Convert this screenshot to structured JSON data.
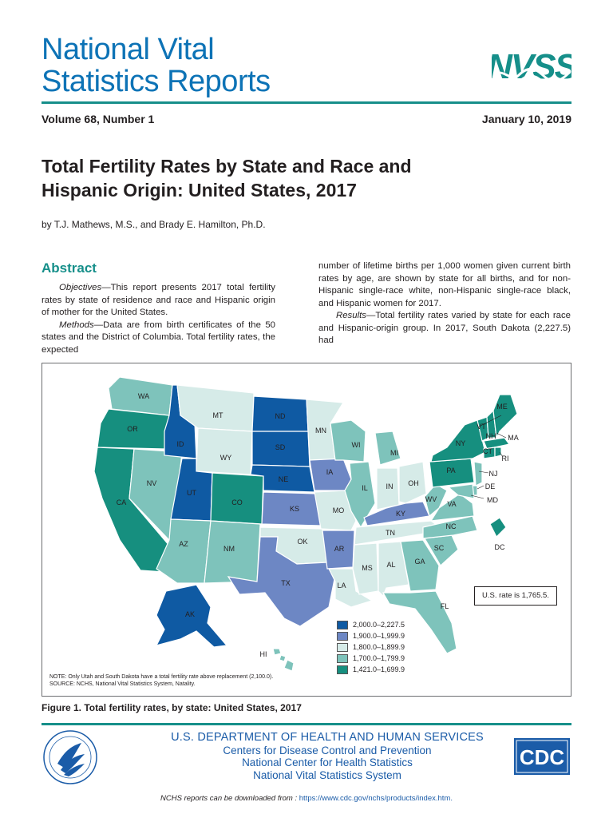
{
  "masthead": {
    "title_line1": "National Vital",
    "title_line2": "Statistics Reports",
    "logo_text": "NVSS"
  },
  "issue": {
    "volume": "Volume 68, Number 1",
    "date": "January 10, 2019"
  },
  "report": {
    "title_line1": "Total Fertility Rates by State and Race and",
    "title_line2": "Hispanic Origin: United States, 2017",
    "byline": "by T.J. Mathews, M.S., and Brady E. Hamilton, Ph.D."
  },
  "abstract": {
    "heading": "Abstract",
    "objectives_label": "Objectives",
    "objectives_text": "—This report presents 2017 total fertility rates by state of residence and race and Hispanic origin of mother for the United States.",
    "methods_label": "Methods",
    "methods_text": "—Data are from birth certificates of the 50 states and the District of Columbia. Total fertility rates, the expected",
    "col2_text": "number of lifetime births per 1,000 women given current birth rates by age, are shown by state for all births, and for non-Hispanic single-race white, non-Hispanic single-race black, and Hispanic women for 2017.",
    "results_label": "Results",
    "results_text": "—Total fertility rates varied by state for each race and Hispanic-origin group. In 2017, South Dakota (2,227.5) had"
  },
  "figure": {
    "caption": "Figure 1. Total fertility rates, by state: United States, 2017",
    "us_rate": "U.S. rate is 1,765.5.",
    "note": "NOTE: Only Utah and South Dakota have a total fertility rate above replacement (2,100.0).",
    "source": "SOURCE: NCHS, National Vital Statistics System, Natality.",
    "legend": [
      {
        "label": "2,000.0–2,227.5",
        "color": "#0f5aa3"
      },
      {
        "label": "1,900.0–1,999.9",
        "color": "#6d87c4"
      },
      {
        "label": "1,800.0–1,899.9",
        "color": "#d6ebe8"
      },
      {
        "label": "1,700.0–1,799.9",
        "color": "#7ec3bb"
      },
      {
        "label": "1,421.0–1,699.9",
        "color": "#168f7f"
      }
    ],
    "states": {
      "WA": "WA",
      "OR": "OR",
      "CA": "CA",
      "NV": "NV",
      "ID": "ID",
      "MT": "MT",
      "WY": "WY",
      "UT": "UT",
      "CO": "CO",
      "AZ": "AZ",
      "NM": "NM",
      "ND": "ND",
      "SD": "SD",
      "NE": "NE",
      "KS": "KS",
      "OK": "OK",
      "TX": "TX",
      "MN": "MN",
      "IA": "IA",
      "MO": "MO",
      "AR": "AR",
      "LA": "LA",
      "WI": "WI",
      "IL": "IL",
      "MI": "MI",
      "IN": "IN",
      "OH": "OH",
      "KY": "KY",
      "TN": "TN",
      "MS": "MS",
      "AL": "AL",
      "GA": "GA",
      "FL": "FL",
      "SC": "SC",
      "NC": "NC",
      "VA": "VA",
      "WV": "WV",
      "PA": "PA",
      "NY": "NY",
      "VT": "VT",
      "NH": "NH",
      "ME": "ME",
      "MA": "MA",
      "RI": "RI",
      "CT": "CT",
      "NJ": "NJ",
      "DE": "DE",
      "MD": "MD",
      "DC": "DC",
      "AK": "AK",
      "HI": "HI"
    }
  },
  "footer": {
    "dept": "U.S. DEPARTMENT OF HEALTH AND HUMAN SERVICES",
    "cdc": "Centers for Disease Control and Prevention",
    "nchs": "National Center for Health Statistics",
    "nvss": "National Vital Statistics System",
    "download_text": "NCHS reports can be downloaded from : ",
    "download_url": "https://www.cdc.gov/nchs/products/index.htm.",
    "cdc_logo": "CDC"
  }
}
